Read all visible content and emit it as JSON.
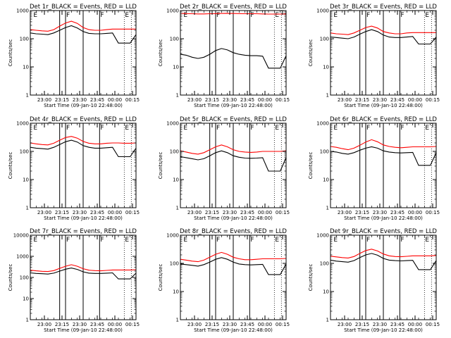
{
  "figure": {
    "xlabel": "Start Time (09-Jan-10 22:48:00)",
    "ylabel": "Counts/sec",
    "x_tick_labels": [
      "23:00",
      "23:15",
      "23:30",
      "23:45",
      "00:00",
      "00:15"
    ],
    "markers": [
      "E",
      "F",
      "F",
      "E"
    ]
  },
  "colors": {
    "events": "#000000",
    "lld": "#ff0000",
    "background": "#ffffff"
  },
  "chart_data": [
    {
      "type": "line",
      "title": "Det 1r_BLACK = Events, RED = LLD",
      "ylim": [
        1,
        1000
      ],
      "yscale": "log",
      "y_tick_labels": [
        "1",
        "10",
        "100",
        "1000"
      ],
      "x": [
        0,
        5,
        10,
        15,
        20,
        25,
        30,
        35,
        40,
        45,
        50,
        55,
        60,
        65,
        70,
        75,
        80,
        85,
        90
      ],
      "series": [
        {
          "values": [
            160,
            150,
            145,
            140,
            160,
            200,
            250,
            290,
            240,
            180,
            155,
            150,
            150,
            155,
            160,
            70,
            70,
            70,
            140
          ]
        },
        {
          "values": [
            210,
            200,
            190,
            185,
            210,
            280,
            360,
            420,
            350,
            250,
            210,
            200,
            200,
            210,
            220,
            220,
            220,
            220,
            220
          ]
        }
      ]
    },
    {
      "type": "line",
      "title": "Det 2r_BLACK = Events, RED = LLD",
      "ylim": [
        1,
        1000
      ],
      "yscale": "log",
      "y_tick_labels": [
        "1",
        "10",
        "100",
        "1000"
      ],
      "x": [
        0,
        5,
        10,
        15,
        20,
        25,
        30,
        35,
        40,
        45,
        50,
        55,
        60,
        65,
        70,
        75,
        80,
        85,
        90
      ],
      "series": [
        {
          "values": [
            28,
            26,
            22,
            20,
            22,
            28,
            38,
            45,
            40,
            32,
            28,
            26,
            25,
            25,
            24,
            9,
            9,
            9,
            25
          ]
        },
        {
          "values": [
            800,
            780,
            770,
            760,
            760,
            770,
            780,
            790,
            800,
            790,
            780,
            770,
            770,
            770,
            760,
            750,
            750,
            750,
            760
          ]
        }
      ]
    },
    {
      "type": "line",
      "title": "Det 3r_BLACK = Events, RED = LLD",
      "ylim": [
        1,
        1000
      ],
      "yscale": "log",
      "y_tick_labels": [
        "1",
        "10",
        "100",
        "1000"
      ],
      "x": [
        0,
        5,
        10,
        15,
        20,
        25,
        30,
        35,
        40,
        45,
        50,
        55,
        60,
        65,
        70,
        75,
        80,
        85,
        90
      ],
      "series": [
        {
          "values": [
            115,
            110,
            105,
            100,
            115,
            145,
            180,
            210,
            180,
            135,
            115,
            110,
            110,
            115,
            120,
            65,
            65,
            65,
            115
          ]
        },
        {
          "values": [
            160,
            150,
            145,
            140,
            160,
            200,
            250,
            280,
            240,
            180,
            160,
            150,
            150,
            160,
            165,
            165,
            165,
            165,
            165
          ]
        }
      ]
    },
    {
      "type": "line",
      "title": "Det 4r_BLACK = Events, RED = LLD",
      "ylim": [
        1,
        1000
      ],
      "yscale": "log",
      "y_tick_labels": [
        "1",
        "10",
        "100",
        "1000"
      ],
      "x": [
        0,
        5,
        10,
        15,
        20,
        25,
        30,
        35,
        40,
        45,
        50,
        55,
        60,
        65,
        70,
        75,
        80,
        85,
        90
      ],
      "series": [
        {
          "values": [
            140,
            130,
            125,
            120,
            140,
            175,
            220,
            250,
            215,
            160,
            140,
            130,
            130,
            135,
            140,
            65,
            65,
            65,
            130
          ]
        },
        {
          "values": [
            200,
            185,
            175,
            170,
            195,
            250,
            310,
            340,
            295,
            225,
            195,
            185,
            185,
            195,
            200,
            200,
            195,
            195,
            200
          ]
        }
      ]
    },
    {
      "type": "line",
      "title": "Det 5r_BLACK = Events, RED = LLD",
      "ylim": [
        1,
        1000
      ],
      "yscale": "log",
      "y_tick_labels": [
        "1",
        "10",
        "100",
        "1000"
      ],
      "x": [
        0,
        5,
        10,
        15,
        20,
        25,
        30,
        35,
        40,
        45,
        50,
        55,
        60,
        65,
        70,
        75,
        80,
        85,
        90
      ],
      "series": [
        {
          "values": [
            65,
            60,
            55,
            50,
            55,
            70,
            90,
            105,
            90,
            70,
            62,
            58,
            57,
            58,
            60,
            20,
            20,
            20,
            60
          ]
        },
        {
          "values": [
            105,
            95,
            85,
            80,
            90,
            115,
            145,
            170,
            145,
            115,
            100,
            95,
            92,
            95,
            100,
            100,
            100,
            100,
            105
          ]
        }
      ]
    },
    {
      "type": "line",
      "title": "Det 6r_BLACK = Events, RED = LLD",
      "ylim": [
        1,
        1000
      ],
      "yscale": "log",
      "y_tick_labels": [
        "1",
        "10",
        "100",
        "1000"
      ],
      "x": [
        0,
        5,
        10,
        15,
        20,
        25,
        30,
        35,
        40,
        45,
        50,
        55,
        60,
        65,
        70,
        75,
        80,
        85,
        90
      ],
      "series": [
        {
          "values": [
            100,
            95,
            85,
            80,
            90,
            110,
            130,
            145,
            130,
            105,
            95,
            90,
            88,
            90,
            92,
            32,
            32,
            32,
            90
          ]
        },
        {
          "values": [
            150,
            140,
            125,
            115,
            130,
            165,
            215,
            260,
            220,
            170,
            150,
            140,
            135,
            140,
            145,
            145,
            145,
            145,
            150
          ]
        }
      ]
    },
    {
      "type": "line",
      "title": "Det 7r_BLACK = Events, RED = LLD",
      "ylim": [
        1,
        10000
      ],
      "yscale": "log",
      "y_tick_labels": [
        "1",
        "10",
        "100",
        "1000",
        "10000"
      ],
      "x": [
        0,
        5,
        10,
        15,
        20,
        25,
        30,
        35,
        40,
        45,
        50,
        55,
        60,
        65,
        70,
        75,
        80,
        85,
        90
      ],
      "series": [
        {
          "values": [
            165,
            155,
            150,
            145,
            160,
            200,
            245,
            280,
            240,
            185,
            160,
            155,
            155,
            160,
            165,
            85,
            85,
            85,
            160
          ]
        },
        {
          "values": [
            220,
            205,
            195,
            190,
            210,
            270,
            340,
            400,
            340,
            260,
            220,
            210,
            205,
            215,
            225,
            225,
            225,
            225,
            230
          ]
        }
      ]
    },
    {
      "type": "line",
      "title": "Det 8r_BLACK = Events, RED = LLD",
      "ylim": [
        1,
        1000
      ],
      "yscale": "log",
      "y_tick_labels": [
        "1",
        "10",
        "100",
        "1000"
      ],
      "x": [
        0,
        5,
        10,
        15,
        20,
        25,
        30,
        35,
        40,
        45,
        50,
        55,
        60,
        65,
        70,
        75,
        80,
        85,
        90
      ],
      "series": [
        {
          "values": [
            95,
            90,
            85,
            80,
            90,
            110,
            140,
            160,
            140,
            110,
            95,
            90,
            88,
            90,
            92,
            40,
            40,
            40,
            95
          ]
        },
        {
          "values": [
            140,
            130,
            120,
            115,
            130,
            165,
            210,
            245,
            210,
            165,
            145,
            135,
            135,
            140,
            145,
            145,
            145,
            145,
            150
          ]
        }
      ]
    },
    {
      "type": "line",
      "title": "Det 9r_BLACK = Events, RED = LLD",
      "ylim": [
        1,
        1000
      ],
      "yscale": "log",
      "y_tick_labels": [
        "1",
        "10",
        "100",
        "1000"
      ],
      "x": [
        0,
        5,
        10,
        15,
        20,
        25,
        30,
        35,
        40,
        45,
        50,
        55,
        60,
        65,
        70,
        75,
        80,
        85,
        90
      ],
      "series": [
        {
          "values": [
            130,
            120,
            115,
            110,
            125,
            160,
            200,
            225,
            195,
            150,
            130,
            125,
            122,
            125,
            128,
            60,
            60,
            60,
            125
          ]
        },
        {
          "values": [
            180,
            170,
            160,
            155,
            175,
            225,
            285,
            320,
            275,
            215,
            185,
            175,
            172,
            178,
            185,
            185,
            185,
            185,
            190
          ]
        }
      ]
    }
  ]
}
